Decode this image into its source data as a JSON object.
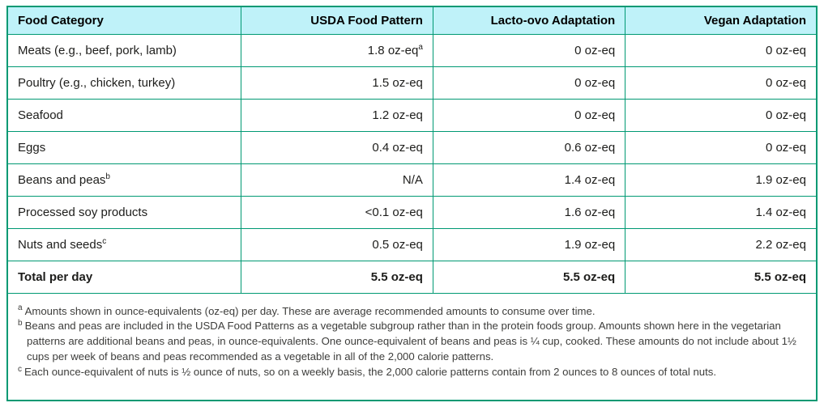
{
  "colors": {
    "border_teal": "#009973",
    "header_bg": "#bff2f9",
    "text": "#1d1d1b",
    "footnote_text": "#3d3d3b"
  },
  "table": {
    "columns": [
      {
        "label": "Food Category",
        "align": "left"
      },
      {
        "label": "USDA Food Pattern",
        "align": "right"
      },
      {
        "label": "Lacto-ovo Adaptation",
        "align": "right"
      },
      {
        "label": "Vegan Adaptation",
        "align": "right"
      }
    ],
    "unit": "oz-eq",
    "rows": [
      {
        "category": "Meats (e.g., beef, pork, lamb)",
        "category_sup": "",
        "usda": "1.8 oz-eq",
        "usda_sup": "a",
        "lacto_ovo": "0 oz-eq",
        "vegan": "0 oz-eq",
        "bold": false
      },
      {
        "category": "Poultry (e.g., chicken, turkey)",
        "category_sup": "",
        "usda": "1.5 oz-eq",
        "usda_sup": "",
        "lacto_ovo": "0 oz-eq",
        "vegan": "0 oz-eq",
        "bold": false
      },
      {
        "category": "Seafood",
        "category_sup": "",
        "usda": "1.2 oz-eq",
        "usda_sup": "",
        "lacto_ovo": "0 oz-eq",
        "vegan": "0 oz-eq",
        "bold": false
      },
      {
        "category": "Eggs",
        "category_sup": "",
        "usda": "0.4 oz-eq",
        "usda_sup": "",
        "lacto_ovo": "0.6 oz-eq",
        "vegan": "0 oz-eq",
        "bold": false
      },
      {
        "category": "Beans and peas",
        "category_sup": "b",
        "usda": "N/A",
        "usda_sup": "",
        "lacto_ovo": "1.4 oz-eq",
        "vegan": "1.9 oz-eq",
        "bold": false
      },
      {
        "category": "Processed soy products",
        "category_sup": "",
        "usda": "<0.1 oz-eq",
        "usda_sup": "",
        "lacto_ovo": "1.6 oz-eq",
        "vegan": "1.4 oz-eq",
        "bold": false
      },
      {
        "category": "Nuts and seeds",
        "category_sup": "c",
        "usda": "0.5 oz-eq",
        "usda_sup": "",
        "lacto_ovo": "1.9 oz-eq",
        "vegan": "2.2 oz-eq",
        "bold": false
      },
      {
        "category": "Total per day",
        "category_sup": "",
        "usda": "5.5 oz-eq",
        "usda_sup": "",
        "lacto_ovo": "5.5 oz-eq",
        "vegan": "5.5 oz-eq",
        "bold": true
      }
    ]
  },
  "footnotes": [
    {
      "marker": "a",
      "text": "Amounts shown in ounce-equivalents (oz-eq) per day. These are average recommended amounts to consume over time."
    },
    {
      "marker": "b",
      "text": "Beans and peas are included in the USDA Food Patterns as a vegetable subgroup rather than in the protein foods group. Amounts shown here in the vegetarian patterns are additional beans and peas, in ounce-equivalents. One ounce-equivalent of beans and peas is ¼ cup, cooked. These amounts do not include about 1½ cups per week of beans and peas recommended as a vegetable in all of the 2,000 calorie patterns."
    },
    {
      "marker": "c",
      "text": "Each ounce-equivalent of nuts is ½ ounce of nuts, so on a weekly basis, the 2,000 calorie patterns contain from 2 ounces to 8 ounces of total nuts."
    }
  ]
}
